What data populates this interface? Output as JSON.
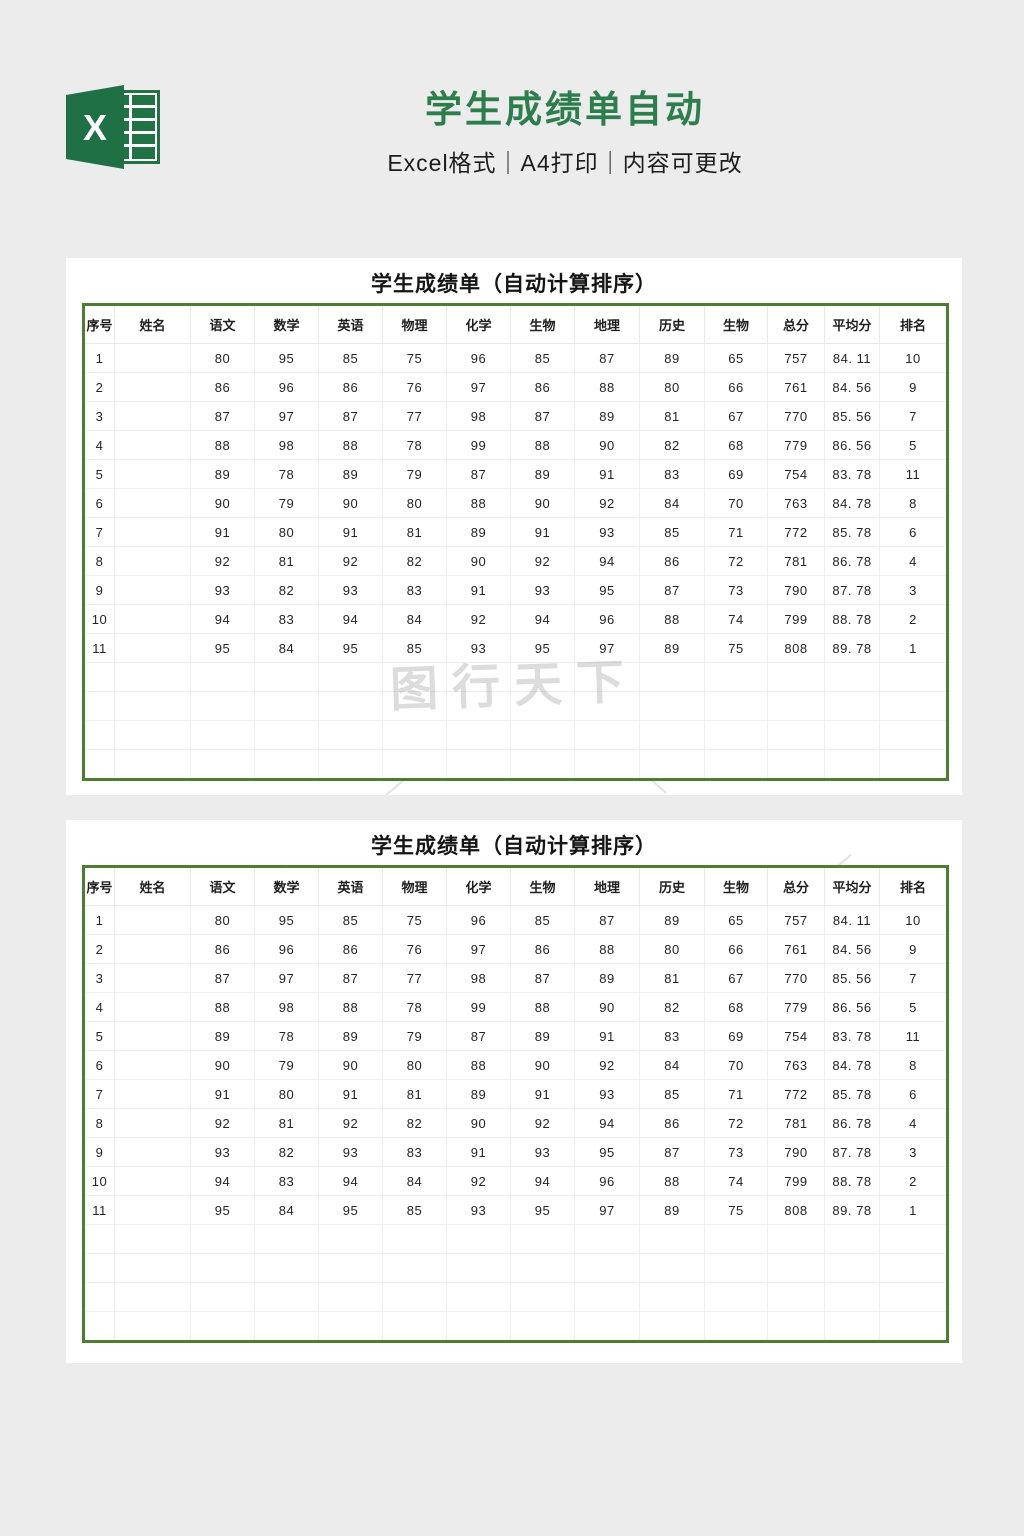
{
  "header": {
    "title": "学生成绩单自动",
    "subtitle": "Excel格式｜A4打印｜内容可更改",
    "logo_icon": "excel-logo",
    "title_color": "#2d7d4d"
  },
  "watermark": {
    "text": "图行天下"
  },
  "cards": [
    {
      "title": "学生成绩单（自动计算排序）"
    },
    {
      "title": "学生成绩单（自动计算排序）"
    }
  ],
  "table": {
    "columns": [
      "序号",
      "姓名",
      "语文",
      "数学",
      "英语",
      "物理",
      "化学",
      "生物",
      "地理",
      "历史",
      "生物",
      "总分",
      "平均分",
      "排名"
    ],
    "rows": [
      [
        "1",
        "",
        "80",
        "95",
        "85",
        "75",
        "96",
        "85",
        "87",
        "89",
        "65",
        "757",
        "84. 11",
        "10"
      ],
      [
        "2",
        "",
        "86",
        "96",
        "86",
        "76",
        "97",
        "86",
        "88",
        "80",
        "66",
        "761",
        "84. 56",
        "9"
      ],
      [
        "3",
        "",
        "87",
        "97",
        "87",
        "77",
        "98",
        "87",
        "89",
        "81",
        "67",
        "770",
        "85. 56",
        "7"
      ],
      [
        "4",
        "",
        "88",
        "98",
        "88",
        "78",
        "99",
        "88",
        "90",
        "82",
        "68",
        "779",
        "86. 56",
        "5"
      ],
      [
        "5",
        "",
        "89",
        "78",
        "89",
        "79",
        "87",
        "89",
        "91",
        "83",
        "69",
        "754",
        "83. 78",
        "11"
      ],
      [
        "6",
        "",
        "90",
        "79",
        "90",
        "80",
        "88",
        "90",
        "92",
        "84",
        "70",
        "763",
        "84. 78",
        "8"
      ],
      [
        "7",
        "",
        "91",
        "80",
        "91",
        "81",
        "89",
        "91",
        "93",
        "85",
        "71",
        "772",
        "85. 78",
        "6"
      ],
      [
        "8",
        "",
        "92",
        "81",
        "92",
        "82",
        "90",
        "92",
        "94",
        "86",
        "72",
        "781",
        "86. 78",
        "4"
      ],
      [
        "9",
        "",
        "93",
        "82",
        "93",
        "83",
        "91",
        "93",
        "95",
        "87",
        "73",
        "790",
        "87. 78",
        "3"
      ],
      [
        "10",
        "",
        "94",
        "83",
        "94",
        "84",
        "92",
        "94",
        "96",
        "88",
        "74",
        "799",
        "88. 78",
        "2"
      ],
      [
        "11",
        "",
        "95",
        "84",
        "95",
        "85",
        "93",
        "95",
        "97",
        "89",
        "75",
        "808",
        "89. 78",
        "1"
      ]
    ],
    "empty_row_count": 4,
    "border_color": "#4e7c30"
  }
}
